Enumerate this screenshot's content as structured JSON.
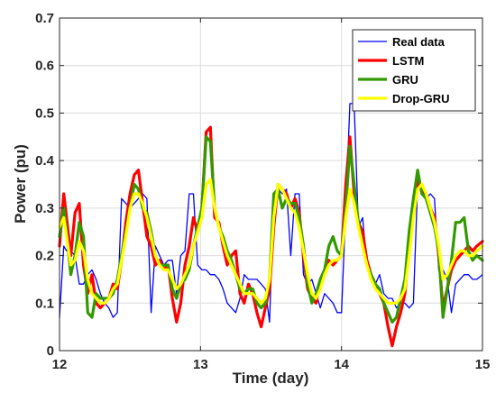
{
  "chart_data": {
    "type": "line",
    "xlabel": "Time (day)",
    "ylabel": "Power (pu)",
    "xlim": [
      12,
      15
    ],
    "ylim": [
      0,
      0.7
    ],
    "xticks": [
      12,
      13,
      14,
      15
    ],
    "yticks": [
      0,
      0.1,
      0.2,
      0.3,
      0.4,
      0.5,
      0.6,
      0.7
    ],
    "grid": true,
    "legend_position": "top-right",
    "series": [
      {
        "name": "Real data",
        "color": "#0000ff",
        "width": 1.3,
        "x": [
          12.0,
          12.03,
          12.05,
          12.08,
          12.11,
          12.14,
          12.17,
          12.2,
          12.23,
          12.26,
          12.29,
          12.32,
          12.35,
          12.38,
          12.41,
          12.44,
          12.47,
          12.5,
          12.53,
          12.56,
          12.59,
          12.62,
          12.65,
          12.68,
          12.71,
          12.74,
          12.77,
          12.8,
          12.83,
          12.86,
          12.89,
          12.92,
          12.95,
          12.98,
          13.01,
          13.04,
          13.07,
          13.1,
          13.13,
          13.16,
          13.19,
          13.22,
          13.25,
          13.28,
          13.31,
          13.34,
          13.37,
          13.4,
          13.43,
          13.46,
          13.49,
          13.52,
          13.55,
          13.58,
          13.61,
          13.64,
          13.67,
          13.7,
          13.73,
          13.76,
          13.79,
          13.82,
          13.85,
          13.88,
          13.91,
          13.94,
          13.97,
          14.0,
          14.03,
          14.06,
          14.09,
          14.12,
          14.15,
          14.18,
          14.21,
          14.24,
          14.27,
          14.3,
          14.33,
          14.36,
          14.39,
          14.42,
          14.45,
          14.48,
          14.51,
          14.54,
          14.57,
          14.6,
          14.63,
          14.66,
          14.69,
          14.72,
          14.75,
          14.78,
          14.81,
          14.84,
          14.87,
          14.9,
          14.93,
          14.96,
          15.0
        ],
        "y": [
          0.07,
          0.22,
          0.21,
          0.21,
          0.2,
          0.14,
          0.14,
          0.16,
          0.17,
          0.15,
          0.12,
          0.1,
          0.09,
          0.07,
          0.08,
          0.32,
          0.31,
          0.3,
          0.31,
          0.32,
          0.33,
          0.32,
          0.08,
          0.22,
          0.2,
          0.18,
          0.19,
          0.19,
          0.12,
          0.2,
          0.21,
          0.33,
          0.33,
          0.18,
          0.17,
          0.17,
          0.16,
          0.16,
          0.15,
          0.13,
          0.1,
          0.09,
          0.08,
          0.11,
          0.16,
          0.15,
          0.15,
          0.15,
          0.14,
          0.13,
          0.06,
          0.33,
          0.34,
          0.33,
          0.34,
          0.2,
          0.33,
          0.33,
          0.16,
          0.14,
          0.15,
          0.12,
          0.09,
          0.12,
          0.11,
          0.1,
          0.08,
          0.08,
          0.3,
          0.52,
          0.52,
          0.26,
          0.28,
          0.18,
          0.15,
          0.14,
          0.16,
          0.12,
          0.11,
          0.11,
          0.09,
          0.1,
          0.1,
          0.09,
          0.1,
          0.35,
          0.34,
          0.32,
          0.33,
          0.32,
          0.17,
          0.17,
          0.15,
          0.08,
          0.14,
          0.15,
          0.16,
          0.16,
          0.15,
          0.15,
          0.16
        ]
      },
      {
        "name": "LSTM",
        "color": "#ff0000",
        "width": 3.2,
        "x": [
          12.0,
          12.03,
          12.05,
          12.08,
          12.11,
          12.14,
          12.17,
          12.2,
          12.23,
          12.26,
          12.29,
          12.32,
          12.35,
          12.38,
          12.41,
          12.44,
          12.47,
          12.5,
          12.53,
          12.56,
          12.59,
          12.62,
          12.65,
          12.68,
          12.71,
          12.74,
          12.77,
          12.8,
          12.83,
          12.86,
          12.89,
          12.92,
          12.95,
          12.98,
          13.01,
          13.04,
          13.07,
          13.1,
          13.13,
          13.16,
          13.19,
          13.22,
          13.25,
          13.28,
          13.31,
          13.34,
          13.37,
          13.4,
          13.43,
          13.46,
          13.49,
          13.52,
          13.55,
          13.58,
          13.61,
          13.64,
          13.67,
          13.7,
          13.73,
          13.76,
          13.79,
          13.82,
          13.85,
          13.88,
          13.91,
          13.94,
          13.97,
          14.0,
          14.03,
          14.06,
          14.09,
          14.12,
          14.15,
          14.18,
          14.21,
          14.24,
          14.27,
          14.3,
          14.33,
          14.36,
          14.39,
          14.42,
          14.45,
          14.48,
          14.51,
          14.54,
          14.57,
          14.6,
          14.63,
          14.66,
          14.69,
          14.72,
          14.75,
          14.78,
          14.81,
          14.84,
          14.87,
          14.9,
          14.93,
          14.96,
          15.0
        ],
        "y": [
          0.22,
          0.33,
          0.28,
          0.2,
          0.29,
          0.31,
          0.18,
          0.12,
          0.16,
          0.1,
          0.09,
          0.1,
          0.11,
          0.14,
          0.13,
          0.19,
          0.27,
          0.33,
          0.37,
          0.38,
          0.31,
          0.24,
          0.22,
          0.18,
          0.19,
          0.17,
          0.18,
          0.11,
          0.06,
          0.1,
          0.18,
          0.22,
          0.28,
          0.25,
          0.3,
          0.46,
          0.47,
          0.28,
          0.27,
          0.22,
          0.18,
          0.2,
          0.21,
          0.12,
          0.1,
          0.14,
          0.12,
          0.08,
          0.05,
          0.09,
          0.13,
          0.26,
          0.35,
          0.34,
          0.33,
          0.3,
          0.32,
          0.29,
          0.2,
          0.13,
          0.11,
          0.1,
          0.15,
          0.17,
          0.19,
          0.18,
          0.19,
          0.2,
          0.35,
          0.45,
          0.33,
          0.27,
          0.25,
          0.19,
          0.16,
          0.14,
          0.12,
          0.1,
          0.05,
          0.01,
          0.05,
          0.08,
          0.12,
          0.22,
          0.3,
          0.36,
          0.34,
          0.33,
          0.3,
          0.28,
          0.2,
          0.09,
          0.13,
          0.17,
          0.19,
          0.2,
          0.21,
          0.22,
          0.21,
          0.22,
          0.23
        ]
      },
      {
        "name": "GRU",
        "color": "#339900",
        "width": 3.2,
        "x": [
          12.0,
          12.03,
          12.05,
          12.08,
          12.11,
          12.14,
          12.17,
          12.2,
          12.23,
          12.26,
          12.29,
          12.32,
          12.35,
          12.38,
          12.41,
          12.44,
          12.47,
          12.5,
          12.53,
          12.56,
          12.59,
          12.62,
          12.65,
          12.68,
          12.71,
          12.74,
          12.77,
          12.8,
          12.83,
          12.86,
          12.89,
          12.92,
          12.95,
          12.98,
          13.01,
          13.04,
          13.07,
          13.1,
          13.13,
          13.16,
          13.19,
          13.22,
          13.25,
          13.28,
          13.31,
          13.34,
          13.37,
          13.4,
          13.43,
          13.46,
          13.49,
          13.52,
          13.55,
          13.58,
          13.61,
          13.64,
          13.67,
          13.7,
          13.73,
          13.76,
          13.79,
          13.82,
          13.85,
          13.88,
          13.91,
          13.94,
          13.97,
          14.0,
          14.03,
          14.06,
          14.09,
          14.12,
          14.15,
          14.18,
          14.21,
          14.24,
          14.27,
          14.3,
          14.33,
          14.36,
          14.39,
          14.42,
          14.45,
          14.48,
          14.51,
          14.54,
          14.57,
          14.6,
          14.63,
          14.66,
          14.69,
          14.72,
          14.75,
          14.78,
          14.81,
          14.84,
          14.87,
          14.9,
          14.93,
          14.96,
          15.0
        ],
        "y": [
          0.24,
          0.3,
          0.25,
          0.16,
          0.2,
          0.27,
          0.24,
          0.08,
          0.07,
          0.12,
          0.11,
          0.11,
          0.11,
          0.12,
          0.15,
          0.2,
          0.25,
          0.3,
          0.35,
          0.34,
          0.3,
          0.29,
          0.25,
          0.2,
          0.18,
          0.18,
          0.18,
          0.13,
          0.11,
          0.14,
          0.15,
          0.17,
          0.22,
          0.26,
          0.3,
          0.45,
          0.44,
          0.3,
          0.26,
          0.24,
          0.21,
          0.19,
          0.16,
          0.13,
          0.12,
          0.13,
          0.13,
          0.1,
          0.09,
          0.1,
          0.15,
          0.33,
          0.34,
          0.3,
          0.32,
          0.31,
          0.31,
          0.28,
          0.22,
          0.14,
          0.1,
          0.12,
          0.15,
          0.17,
          0.22,
          0.24,
          0.21,
          0.2,
          0.3,
          0.43,
          0.35,
          0.27,
          0.22,
          0.18,
          0.16,
          0.14,
          0.13,
          0.1,
          0.08,
          0.06,
          0.07,
          0.11,
          0.15,
          0.25,
          0.32,
          0.38,
          0.33,
          0.32,
          0.29,
          0.26,
          0.21,
          0.07,
          0.13,
          0.19,
          0.27,
          0.27,
          0.28,
          0.21,
          0.19,
          0.2,
          0.19
        ]
      },
      {
        "name": "Drop-GRU",
        "color": "#ffff00",
        "width": 3.2,
        "x": [
          12.0,
          12.03,
          12.05,
          12.08,
          12.11,
          12.14,
          12.17,
          12.2,
          12.23,
          12.26,
          12.29,
          12.32,
          12.35,
          12.38,
          12.41,
          12.44,
          12.47,
          12.5,
          12.53,
          12.56,
          12.59,
          12.62,
          12.65,
          12.68,
          12.71,
          12.74,
          12.77,
          12.8,
          12.83,
          12.86,
          12.89,
          12.92,
          12.95,
          12.98,
          13.01,
          13.04,
          13.07,
          13.1,
          13.13,
          13.16,
          13.19,
          13.22,
          13.25,
          13.28,
          13.31,
          13.34,
          13.37,
          13.4,
          13.43,
          13.46,
          13.49,
          13.52,
          13.55,
          13.58,
          13.61,
          13.64,
          13.67,
          13.7,
          13.73,
          13.76,
          13.79,
          13.82,
          13.85,
          13.88,
          13.91,
          13.94,
          13.97,
          14.0,
          14.03,
          14.06,
          14.09,
          14.12,
          14.15,
          14.18,
          14.21,
          14.24,
          14.27,
          14.3,
          14.33,
          14.36,
          14.39,
          14.42,
          14.45,
          14.48,
          14.51,
          14.54,
          14.57,
          14.6,
          14.63,
          14.66,
          14.69,
          14.72,
          14.75,
          14.78,
          14.81,
          14.84,
          14.87,
          14.9,
          14.93,
          14.96,
          15.0
        ],
        "y": [
          0.26,
          0.28,
          0.24,
          0.18,
          0.19,
          0.23,
          0.21,
          0.15,
          0.12,
          0.11,
          0.1,
          0.1,
          0.11,
          0.13,
          0.14,
          0.19,
          0.24,
          0.3,
          0.33,
          0.33,
          0.31,
          0.28,
          0.24,
          0.2,
          0.18,
          0.17,
          0.17,
          0.15,
          0.13,
          0.14,
          0.16,
          0.18,
          0.22,
          0.25,
          0.28,
          0.35,
          0.36,
          0.3,
          0.26,
          0.23,
          0.2,
          0.18,
          0.16,
          0.14,
          0.12,
          0.12,
          0.12,
          0.11,
          0.1,
          0.11,
          0.15,
          0.28,
          0.35,
          0.34,
          0.32,
          0.3,
          0.29,
          0.26,
          0.21,
          0.16,
          0.12,
          0.11,
          0.13,
          0.16,
          0.18,
          0.19,
          0.19,
          0.2,
          0.28,
          0.34,
          0.31,
          0.26,
          0.22,
          0.18,
          0.15,
          0.13,
          0.12,
          0.11,
          0.1,
          0.1,
          0.1,
          0.11,
          0.13,
          0.2,
          0.28,
          0.34,
          0.35,
          0.33,
          0.3,
          0.27,
          0.22,
          0.15,
          0.16,
          0.18,
          0.2,
          0.21,
          0.21,
          0.2,
          0.2,
          0.21,
          0.22
        ]
      }
    ]
  }
}
